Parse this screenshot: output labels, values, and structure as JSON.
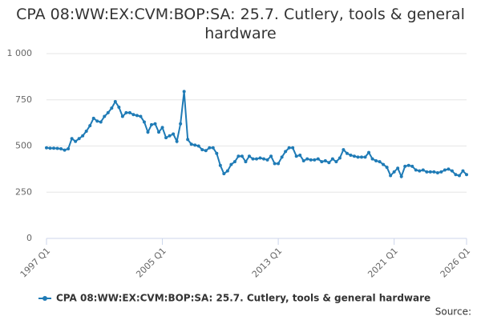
{
  "chart_data": {
    "type": "line",
    "title": "CPA 08:WW:EX:CVM:BOP:SA: 25.7. Cutlery, tools & general hardware",
    "source": "Source:",
    "categories": [
      "1997 Q1",
      null,
      null,
      null,
      null,
      null,
      null,
      null,
      null,
      null,
      null,
      null,
      null,
      null,
      null,
      null,
      null,
      null,
      null,
      null,
      null,
      null,
      null,
      null,
      null,
      null,
      null,
      null,
      null,
      null,
      null,
      null,
      "2005 Q1",
      null,
      null,
      null,
      null,
      null,
      null,
      null,
      null,
      null,
      null,
      null,
      null,
      null,
      null,
      null,
      null,
      null,
      null,
      null,
      null,
      null,
      null,
      null,
      null,
      null,
      null,
      null,
      null,
      null,
      null,
      null,
      "2013 Q1",
      null,
      null,
      null,
      null,
      null,
      null,
      null,
      null,
      null,
      null,
      null,
      null,
      null,
      null,
      null,
      null,
      null,
      null,
      null,
      null,
      null,
      null,
      null,
      null,
      null,
      null,
      null,
      null,
      null,
      null,
      null,
      "2021 Q1",
      null,
      null,
      null,
      null,
      null,
      null,
      null,
      null,
      null,
      null,
      null,
      null,
      null,
      null,
      null,
      null,
      null,
      null,
      null,
      "2026 Q1"
    ],
    "series": [
      {
        "name": "CPA 08:WW:EX:CVM:BOP:SA: 25.7. Cutlery, tools & general hardware",
        "color": "#1f7bb6",
        "values": [
          490,
          488,
          488,
          487,
          485,
          478,
          485,
          540,
          525,
          540,
          555,
          580,
          610,
          650,
          635,
          630,
          660,
          680,
          705,
          740,
          710,
          660,
          680,
          680,
          670,
          665,
          660,
          630,
          575,
          615,
          620,
          575,
          600,
          545,
          555,
          565,
          525,
          620,
          795,
          535,
          510,
          505,
          500,
          480,
          475,
          490,
          490,
          460,
          395,
          350,
          365,
          400,
          415,
          445,
          445,
          415,
          445,
          430,
          430,
          435,
          430,
          425,
          445,
          405,
          405,
          440,
          470,
          490,
          490,
          445,
          450,
          420,
          430,
          425,
          425,
          430,
          415,
          420,
          410,
          430,
          415,
          435,
          480,
          460,
          450,
          445,
          440,
          440,
          440,
          465,
          430,
          420,
          415,
          400,
          385,
          340,
          360,
          380,
          335,
          390,
          395,
          390,
          370,
          365,
          370,
          360,
          360,
          360,
          355,
          360,
          370,
          375,
          365,
          345,
          340,
          365,
          345
        ]
      }
    ],
    "ylim": [
      0,
      1000
    ],
    "yticks": [
      0,
      250,
      500,
      750,
      {
        "value": 1000,
        "label": "1 000"
      }
    ],
    "grid": true
  }
}
